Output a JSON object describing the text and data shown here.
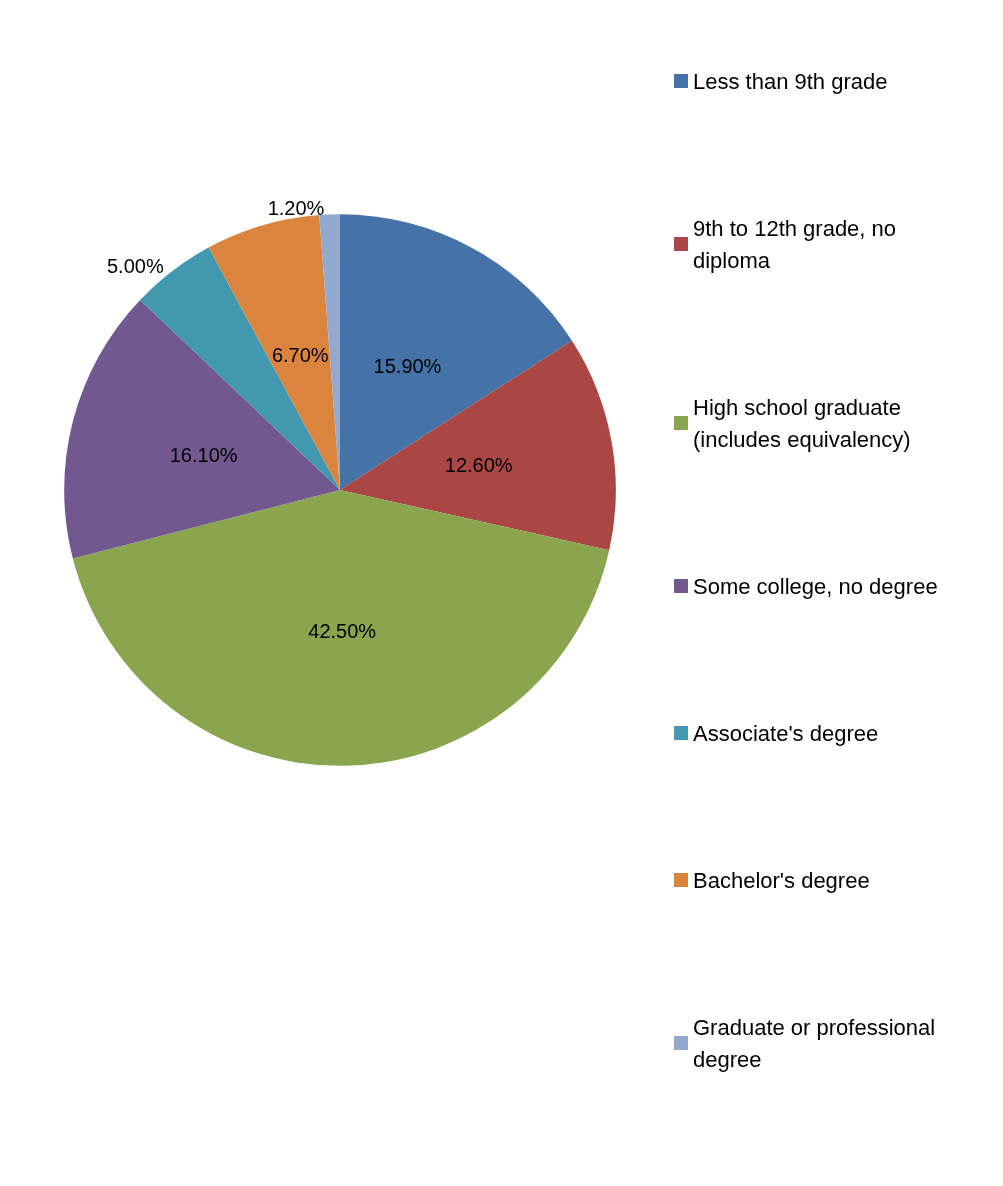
{
  "chart_data": {
    "type": "pie",
    "categories": [
      "Less than 9th grade",
      "9th to 12th grade, no diploma",
      "High school graduate (includes equivalency)",
      "Some college, no degree",
      "Associate's degree",
      "Bachelor's degree",
      "Graduate or professional degree"
    ],
    "values": [
      15.9,
      12.6,
      42.5,
      16.1,
      5.0,
      6.7,
      1.2
    ],
    "value_labels": [
      "15.90%",
      "12.60%",
      "42.50%",
      "16.10%",
      "5.00%",
      "6.70%",
      "1.20%"
    ],
    "colors": [
      "#4572a7",
      "#aa4643",
      "#89a54e",
      "#71588f",
      "#4198af",
      "#db843d",
      "#93a9cf"
    ],
    "legend": "right"
  }
}
